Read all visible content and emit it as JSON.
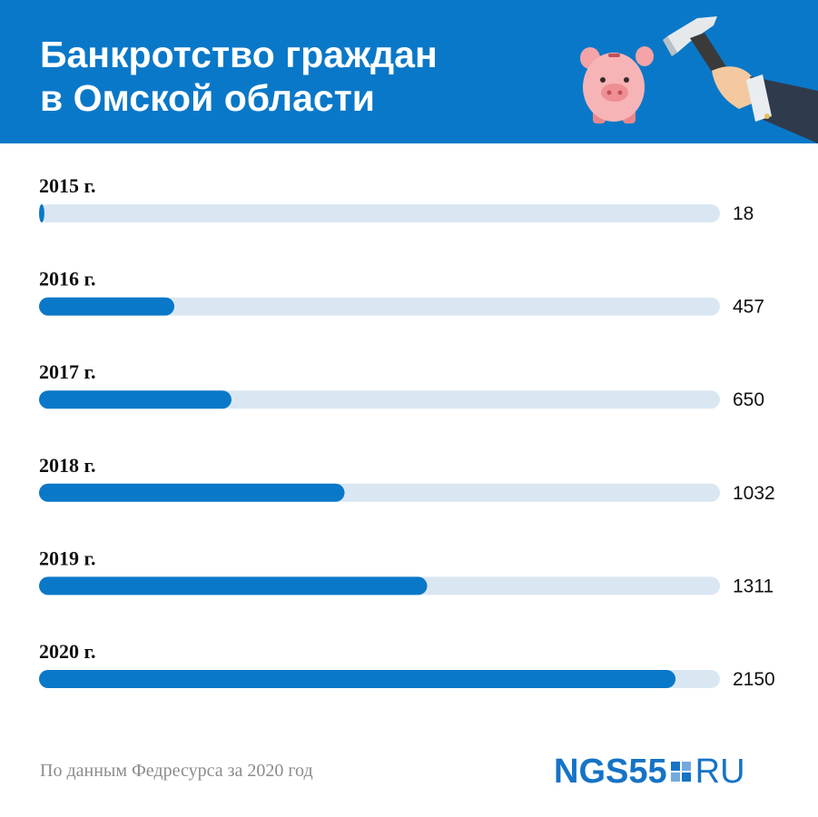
{
  "header": {
    "title_line1": "Банкротство граждан",
    "title_line2": "в Омской области"
  },
  "colors": {
    "header_bg": "#0a78c8",
    "bar_fill": "#0a78c8",
    "bar_track": "#dae7f3",
    "text": "#111111",
    "source_text": "#8c8c8c"
  },
  "chart_data": {
    "type": "bar",
    "orientation": "horizontal",
    "categories": [
      "2015 г.",
      "2016 г.",
      "2017 г.",
      "2018 г.",
      "2019 г.",
      "2020 г."
    ],
    "values": [
      18,
      457,
      650,
      1032,
      1311,
      2150
    ],
    "value_labels": [
      "18",
      "457",
      "650",
      "1032",
      "1311",
      "2150"
    ],
    "xlim": [
      0,
      2300
    ],
    "grid": false,
    "legend": "none"
  },
  "footer": {
    "source": "По данным Федресурса за 2020 год",
    "logo_left": "NGS55",
    "logo_right": "RU"
  },
  "icons": [
    "piggy-bank-icon",
    "hammer-icon"
  ]
}
